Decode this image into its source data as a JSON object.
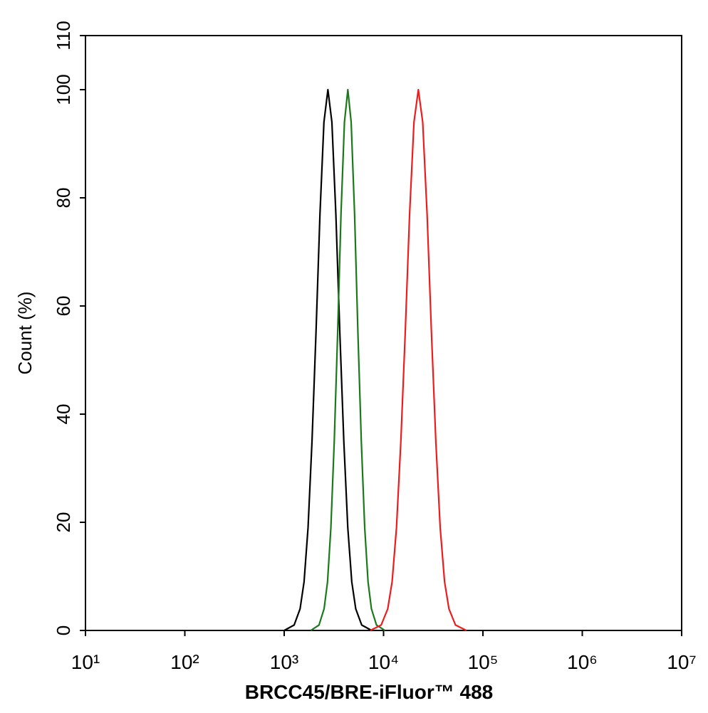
{
  "chart_data": {
    "type": "line",
    "xlabel": "BRCC45/BRE-iFluor™ 488",
    "ylabel": "Count  (%)",
    "xscale": "log",
    "xlim": [
      10,
      10000000
    ],
    "ylim": [
      0,
      110
    ],
    "xticks": [
      {
        "value": 10,
        "label": "10¹"
      },
      {
        "value": 100,
        "label": "10²"
      },
      {
        "value": 1000,
        "label": "10³"
      },
      {
        "value": 10000,
        "label": "10⁴"
      },
      {
        "value": 100000,
        "label": "10⁵"
      },
      {
        "value": 1000000,
        "label": "10⁶"
      },
      {
        "value": 10000000,
        "label": "10⁷"
      }
    ],
    "yticks": [
      0,
      20,
      40,
      60,
      80,
      100,
      110
    ],
    "series": [
      {
        "color": "#000000",
        "x": [
          1000,
          1259,
          1445,
          1585,
          1738,
          1905,
          2089,
          2291,
          2512,
          2754,
          3020,
          3311,
          3631,
          3981,
          4365,
          4786,
          5248,
          6026,
          7586
        ],
        "values": [
          0,
          1,
          4,
          9,
          19,
          35,
          55,
          77,
          94,
          100,
          94,
          77,
          55,
          35,
          19,
          9,
          4,
          1,
          0
        ]
      },
      {
        "color": "#1a7a1a",
        "x": [
          1850,
          2240,
          2520,
          2730,
          2950,
          3190,
          3450,
          3730,
          4040,
          4370,
          4720,
          5110,
          5520,
          5970,
          6460,
          6980,
          7550,
          8490,
          10330
        ],
        "values": [
          0,
          1,
          4,
          9,
          19,
          35,
          55,
          77,
          94,
          100,
          94,
          77,
          55,
          35,
          19,
          9,
          4,
          1,
          0
        ]
      },
      {
        "color": "#ee1c1c",
        "x": [
          7345,
          9462,
          11015,
          12190,
          13490,
          14930,
          16520,
          18280,
          20230,
          22390,
          24770,
          27420,
          30340,
          33570,
          37150,
          41110,
          45500,
          52970,
          68230
        ],
        "values": [
          0,
          1,
          4,
          9,
          19,
          35,
          55,
          77,
          94,
          100,
          94,
          77,
          55,
          35,
          19,
          9,
          4,
          1,
          0
        ]
      }
    ]
  }
}
